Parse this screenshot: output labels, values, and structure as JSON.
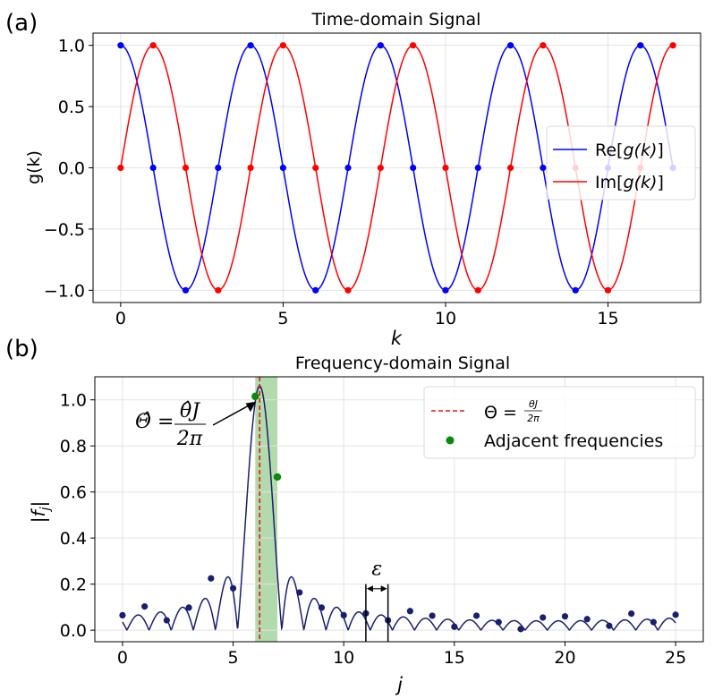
{
  "chart_data": [
    {
      "panel_label": "(a)",
      "type": "line",
      "title": "Time-domain Signal",
      "xlabel": "k",
      "ylabel": "g(k)",
      "xlim": [
        -0.85,
        17.85
      ],
      "ylim": [
        -1.1,
        1.1
      ],
      "xticks": [
        0,
        5,
        10,
        15
      ],
      "xtick_labels": [
        "0",
        "5",
        "10",
        "15"
      ],
      "yticks": [
        -1.0,
        -0.5,
        0.0,
        0.5,
        1.0
      ],
      "ytick_labels": [
        "−1.0",
        "−0.5",
        "0.0",
        "0.5",
        "1.0"
      ],
      "grid": true,
      "legend_position": "center-right",
      "x": [
        0,
        1,
        2,
        3,
        4,
        5,
        6,
        7,
        8,
        9,
        10,
        11,
        12,
        13,
        14,
        15,
        16,
        17
      ],
      "series": [
        {
          "name": "Re[g(k)]",
          "legend_prefix": "Re",
          "color": "#0000ff",
          "values": [
            1,
            0,
            -1,
            0,
            1,
            0,
            -1,
            0,
            1,
            0,
            -1,
            0,
            1,
            0,
            -1,
            0,
            1,
            0
          ]
        },
        {
          "name": "Im[g(k)]",
          "legend_prefix": "Im",
          "color": "#ff0000",
          "values": [
            0,
            1,
            0,
            -1,
            0,
            1,
            0,
            -1,
            0,
            1,
            0,
            -1,
            0,
            1,
            0,
            -1,
            0,
            1
          ]
        }
      ],
      "legend_arg": "g(k)"
    },
    {
      "panel_label": "(b)",
      "type": "line",
      "title": "Frequency-domain Signal",
      "xlabel": "j",
      "ylabel": "|f_j|",
      "xlim": [
        -1.25,
        26.25
      ],
      "ylim": [
        -0.05,
        1.1
      ],
      "xticks": [
        0,
        5,
        10,
        15,
        20,
        25
      ],
      "xtick_labels": [
        "0",
        "5",
        "10",
        "15",
        "20",
        "25"
      ],
      "yticks": [
        0.0,
        0.2,
        0.4,
        0.6,
        0.8,
        1.0
      ],
      "ytick_labels": [
        "0.0",
        "0.2",
        "0.4",
        "0.6",
        "0.8",
        "1.0"
      ],
      "grid": true,
      "legend_position": "top-right",
      "series_color": "#1a1f6e",
      "theta": 6.2,
      "theta_color": "#e8141c",
      "adjacent_color": "#0a8a0a",
      "shade_range": [
        6,
        7
      ],
      "shade_color": "#9acd90",
      "epsilon_range": [
        11,
        12
      ],
      "epsilon_label": "ε",
      "j": [
        0,
        1,
        2,
        3,
        4,
        5,
        6,
        7,
        8,
        9,
        10,
        11,
        12,
        13,
        14,
        15,
        16,
        17,
        18,
        19,
        20,
        21,
        22,
        23,
        24,
        25
      ],
      "values": [
        0.065,
        0.103,
        0.043,
        0.098,
        0.225,
        0.182,
        1.015,
        0.665,
        0.164,
        0.098,
        0.065,
        0.073,
        0.043,
        0.083,
        0.063,
        0.015,
        0.063,
        0.035,
        0.005,
        0.055,
        0.06,
        0.048,
        0.019,
        0.072,
        0.035,
        0.067
      ],
      "legend": {
        "theta_prefix": "Θ =",
        "theta_num": "θJ",
        "theta_den": "2π",
        "adjacent": "Adjacent frequencies"
      },
      "annotation": {
        "prefix": "Θ̂ =",
        "num": "θ̂J",
        "den": "2π"
      }
    }
  ]
}
